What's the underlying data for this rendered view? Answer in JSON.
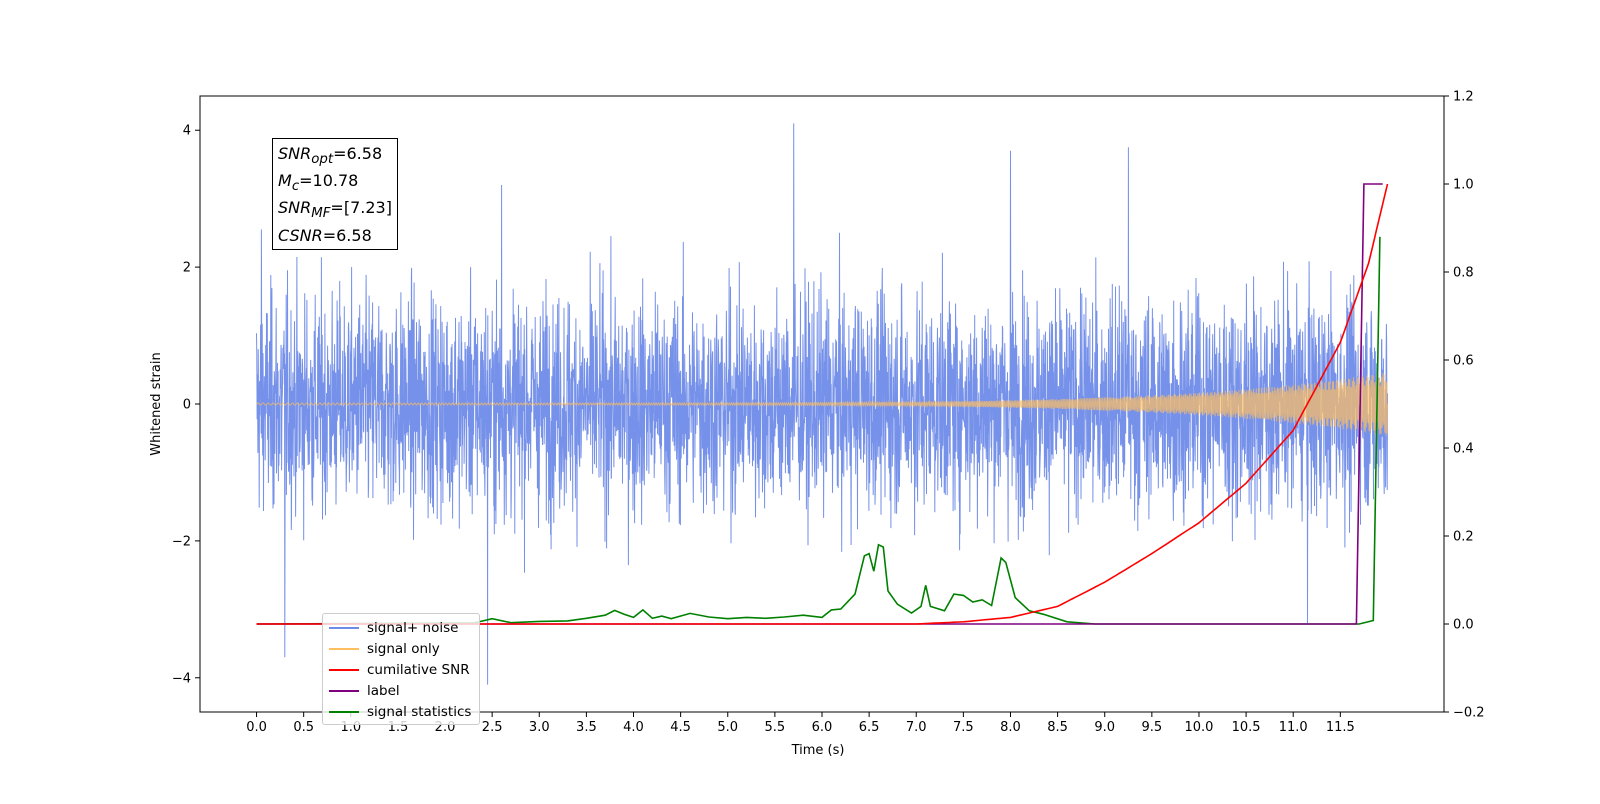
{
  "chart_data": {
    "type": "line",
    "xlabel": "Time (s)",
    "ylabel": "Whitened strain",
    "xlim": [
      -0.6,
      12.6
    ],
    "ylim": [
      -4.5,
      4.5
    ],
    "y2lim": [
      -0.2,
      1.2
    ],
    "grid": false,
    "legend_location": "lower-left",
    "x_ticks": [
      "0.0",
      "0.5",
      "1.0",
      "1.5",
      "2.0",
      "2.5",
      "3.0",
      "3.5",
      "4.0",
      "4.5",
      "5.0",
      "5.5",
      "6.0",
      "6.5",
      "7.0",
      "7.5",
      "8.0",
      "8.5",
      "9.0",
      "9.5",
      "10.0",
      "10.5",
      "11.0",
      "11.5"
    ],
    "y_ticks": [
      "4",
      "2",
      "0",
      "−2",
      "−4"
    ],
    "y2_ticks": [
      "1.2",
      "1.0",
      "0.8",
      "0.6",
      "0.4",
      "0.2",
      "0.0",
      "−0.2"
    ],
    "annotation": [
      {
        "name": "SNR",
        "sub": "opt",
        "value": "=6.58"
      },
      {
        "name": "M",
        "sub": "c",
        "value": "=10.78"
      },
      {
        "name": "SNR",
        "sub": "MF",
        "value": "=[7.23]"
      },
      {
        "name": "CSNR",
        "sub": "",
        "value": "=6.58"
      }
    ],
    "series": [
      {
        "name": "signal+ noise",
        "color": "#6f8be8",
        "axis": "left",
        "kind": "noise",
        "x_range": [
          0.0,
          12.0
        ],
        "envelope": 1.1,
        "peaks": [
          [
            0.3,
            -3.7
          ],
          [
            5.7,
            4.1
          ],
          [
            2.45,
            -4.1
          ],
          [
            8.0,
            3.7
          ],
          [
            9.25,
            3.75
          ],
          [
            11.15,
            -3.2
          ],
          [
            2.6,
            3.2
          ],
          [
            0.05,
            2.55
          ]
        ]
      },
      {
        "name": "signal only",
        "color": "#ffbf60",
        "axis": "left",
        "kind": "chirp",
        "x_range": [
          0.0,
          12.0
        ],
        "amplitude_end": 0.45
      },
      {
        "name": "cumilative SNR",
        "color": "#ff0000",
        "axis": "right",
        "x": [
          0,
          7.0,
          7.5,
          8.0,
          8.5,
          9.0,
          9.5,
          10.0,
          10.5,
          11.0,
          11.5,
          11.8,
          12.0
        ],
        "y": [
          0,
          0,
          0.005,
          0.015,
          0.04,
          0.095,
          0.16,
          0.23,
          0.32,
          0.44,
          0.64,
          0.82,
          1.0
        ]
      },
      {
        "name": "label",
        "color": "#800080",
        "axis": "right",
        "x": [
          0,
          11.67,
          11.75,
          11.95
        ],
        "y": [
          0,
          0,
          1.0,
          1.0
        ]
      },
      {
        "name": "signal statistics",
        "color": "#008000",
        "axis": "right",
        "x": [
          0,
          2.3,
          2.5,
          2.7,
          3.0,
          3.3,
          3.5,
          3.7,
          3.8,
          3.9,
          4.0,
          4.1,
          4.2,
          4.3,
          4.4,
          4.6,
          4.8,
          5.0,
          5.2,
          5.4,
          5.6,
          5.8,
          6.0,
          6.1,
          6.2,
          6.35,
          6.45,
          6.5,
          6.55,
          6.6,
          6.65,
          6.7,
          6.8,
          6.95,
          7.05,
          7.1,
          7.15,
          7.3,
          7.4,
          7.5,
          7.6,
          7.7,
          7.8,
          7.9,
          7.95,
          8.05,
          8.2,
          8.35,
          8.6,
          8.9,
          11.7,
          11.85,
          11.92
        ],
        "y": [
          0,
          0.002,
          0.012,
          0.003,
          0.006,
          0.007,
          0.013,
          0.02,
          0.031,
          0.022,
          0.015,
          0.032,
          0.013,
          0.018,
          0.012,
          0.024,
          0.016,
          0.012,
          0.015,
          0.013,
          0.016,
          0.02,
          0.015,
          0.032,
          0.034,
          0.068,
          0.155,
          0.16,
          0.12,
          0.18,
          0.175,
          0.075,
          0.045,
          0.025,
          0.04,
          0.088,
          0.04,
          0.03,
          0.068,
          0.065,
          0.05,
          0.055,
          0.042,
          0.15,
          0.14,
          0.06,
          0.03,
          0.022,
          0.005,
          0.0,
          0.0,
          0.008,
          0.88
        ]
      }
    ]
  }
}
